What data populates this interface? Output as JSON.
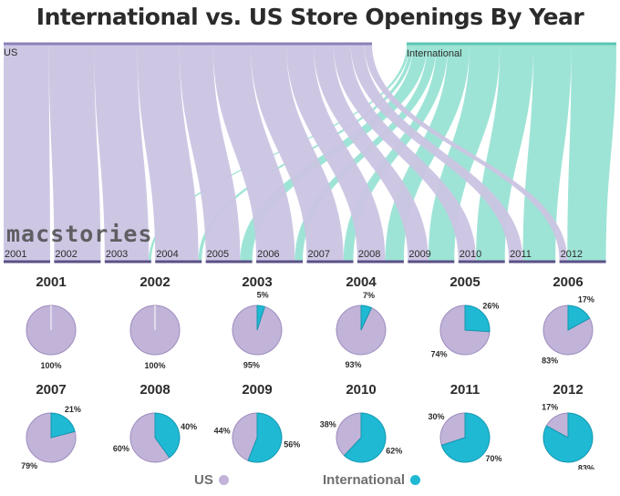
{
  "title": "International vs. US Store Openings By Year",
  "watermark": "macstories",
  "colors": {
    "us_flow": "#cbc4e3",
    "intl_flow": "#8ddfcf",
    "us_line": "#8b80b8",
    "intl_line": "#5ac6b3",
    "us_pie": "#c2b4d8",
    "us_pie_stroke": "#9d8cbf",
    "intl_pie": "#1fb9d4",
    "intl_pie_stroke": "#1597b0",
    "axis": "#5b5086"
  },
  "legend": {
    "us_label": "US",
    "intl_label": "International"
  },
  "chart_data": [
    {
      "type": "sankey",
      "title": "International vs. US Store Openings By Year",
      "sources": [
        "US",
        "International"
      ],
      "years": [
        "2001",
        "2002",
        "2003",
        "2004",
        "2005",
        "2006",
        "2007",
        "2008",
        "2009",
        "2010",
        "2011",
        "2012"
      ]
    },
    {
      "type": "pie",
      "series_names": [
        "US",
        "International"
      ],
      "pies": [
        {
          "year": "2001",
          "us": 100,
          "intl": 0,
          "us_label": "100%",
          "intl_label": ""
        },
        {
          "year": "2002",
          "us": 100,
          "intl": 0,
          "us_label": "100%",
          "intl_label": ""
        },
        {
          "year": "2003",
          "us": 95,
          "intl": 5,
          "us_label": "95%",
          "intl_label": "5%"
        },
        {
          "year": "2004",
          "us": 93,
          "intl": 7,
          "us_label": "93%",
          "intl_label": "7%"
        },
        {
          "year": "2005",
          "us": 74,
          "intl": 26,
          "us_label": "74%",
          "intl_label": "26%"
        },
        {
          "year": "2006",
          "us": 83,
          "intl": 17,
          "us_label": "83%",
          "intl_label": "17%"
        },
        {
          "year": "2007",
          "us": 79,
          "intl": 21,
          "us_label": "79%",
          "intl_label": "21%"
        },
        {
          "year": "2008",
          "us": 60,
          "intl": 40,
          "us_label": "60%",
          "intl_label": "40%"
        },
        {
          "year": "2009",
          "us": 44,
          "intl": 56,
          "us_label": "44%",
          "intl_label": "56%"
        },
        {
          "year": "2010",
          "us": 38,
          "intl": 62,
          "us_label": "38%",
          "intl_label": "62%"
        },
        {
          "year": "2011",
          "us": 30,
          "intl": 70,
          "us_label": "30%",
          "intl_label": "70%"
        },
        {
          "year": "2012",
          "us": 17,
          "intl": 83,
          "us_label": "17%",
          "intl_label": "83%"
        }
      ]
    }
  ]
}
